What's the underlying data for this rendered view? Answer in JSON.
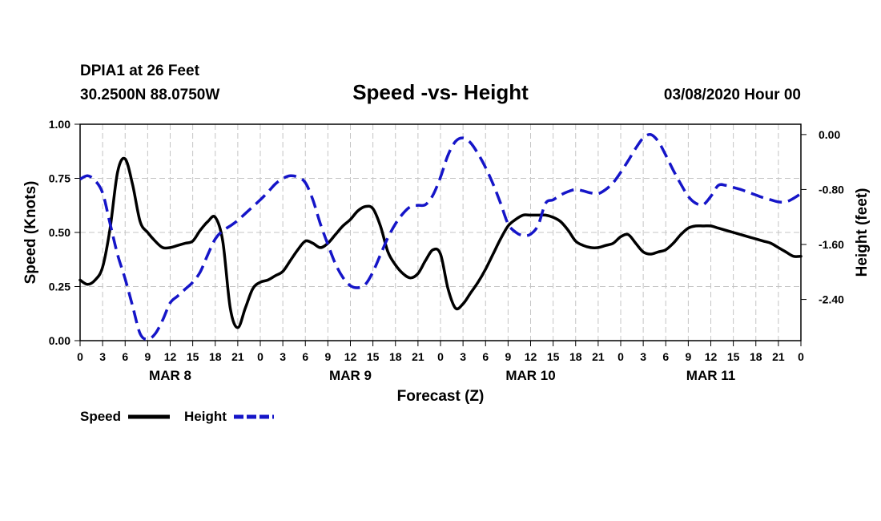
{
  "chart_data": {
    "type": "line",
    "station": "DPIA1 at 26 Feet",
    "coords": "30.2500N 88.0750W",
    "title": "Speed -vs- Height",
    "run": "03/08/2020 Hour 00",
    "xlabel": "Forecast (Z)",
    "ylabel_left": "Speed (Knots)",
    "ylabel_right": "Height (feet)",
    "x_range_hours": [
      0,
      96
    ],
    "y_left_range": [
      0,
      1.0
    ],
    "y_right_range": [
      -3.0,
      0.15
    ],
    "y_left_ticks": [
      "0.00",
      "0.25",
      "0.50",
      "0.75",
      "1.00"
    ],
    "y_left_tick_values": [
      0,
      0.25,
      0.5,
      0.75,
      1.0
    ],
    "y_right_ticks": [
      "0.00",
      "-0.80",
      "-1.60",
      "-2.40"
    ],
    "y_right_tick_values": [
      0,
      -0.8,
      -1.6,
      -2.4
    ],
    "x_tick_labels": [
      "0",
      "3",
      "6",
      "9",
      "12",
      "15",
      "18",
      "21",
      "0",
      "3",
      "6",
      "9",
      "12",
      "15",
      "18",
      "21",
      "0",
      "3",
      "6",
      "9",
      "12",
      "15",
      "18",
      "21",
      "0",
      "3",
      "6",
      "9",
      "12",
      "15",
      "18",
      "21",
      "0"
    ],
    "day_labels": [
      {
        "label": "MAR 8",
        "hour": 12
      },
      {
        "label": "MAR 9",
        "hour": 36
      },
      {
        "label": "MAR 10",
        "hour": 60
      },
      {
        "label": "MAR 11",
        "hour": 84
      }
    ],
    "legend": {
      "speed": "Speed",
      "height": "Height"
    },
    "series": [
      {
        "name": "Speed",
        "color": "#000000",
        "axis": "left",
        "points": [
          [
            0,
            0.28
          ],
          [
            1,
            0.26
          ],
          [
            2,
            0.28
          ],
          [
            3,
            0.34
          ],
          [
            4,
            0.52
          ],
          [
            5,
            0.78
          ],
          [
            6,
            0.84
          ],
          [
            7,
            0.72
          ],
          [
            8,
            0.55
          ],
          [
            9,
            0.5
          ],
          [
            10,
            0.46
          ],
          [
            11,
            0.43
          ],
          [
            12,
            0.43
          ],
          [
            13,
            0.44
          ],
          [
            14,
            0.45
          ],
          [
            15,
            0.46
          ],
          [
            16,
            0.51
          ],
          [
            17,
            0.55
          ],
          [
            18,
            0.57
          ],
          [
            19,
            0.46
          ],
          [
            20,
            0.15
          ],
          [
            21,
            0.06
          ],
          [
            22,
            0.15
          ],
          [
            23,
            0.24
          ],
          [
            24,
            0.27
          ],
          [
            25,
            0.28
          ],
          [
            26,
            0.3
          ],
          [
            27,
            0.32
          ],
          [
            28,
            0.37
          ],
          [
            29,
            0.42
          ],
          [
            30,
            0.46
          ],
          [
            31,
            0.45
          ],
          [
            32,
            0.43
          ],
          [
            33,
            0.45
          ],
          [
            34,
            0.49
          ],
          [
            35,
            0.53
          ],
          [
            36,
            0.56
          ],
          [
            37,
            0.6
          ],
          [
            38,
            0.62
          ],
          [
            39,
            0.61
          ],
          [
            40,
            0.53
          ],
          [
            41,
            0.41
          ],
          [
            42,
            0.35
          ],
          [
            43,
            0.31
          ],
          [
            44,
            0.29
          ],
          [
            45,
            0.31
          ],
          [
            46,
            0.37
          ],
          [
            47,
            0.42
          ],
          [
            48,
            0.4
          ],
          [
            49,
            0.24
          ],
          [
            50,
            0.15
          ],
          [
            51,
            0.17
          ],
          [
            52,
            0.22
          ],
          [
            53,
            0.27
          ],
          [
            54,
            0.33
          ],
          [
            55,
            0.4
          ],
          [
            56,
            0.47
          ],
          [
            57,
            0.53
          ],
          [
            58,
            0.56
          ],
          [
            59,
            0.58
          ],
          [
            60,
            0.58
          ],
          [
            61,
            0.58
          ],
          [
            62,
            0.58
          ],
          [
            63,
            0.57
          ],
          [
            64,
            0.55
          ],
          [
            65,
            0.51
          ],
          [
            66,
            0.46
          ],
          [
            67,
            0.44
          ],
          [
            68,
            0.43
          ],
          [
            69,
            0.43
          ],
          [
            70,
            0.44
          ],
          [
            71,
            0.45
          ],
          [
            72,
            0.48
          ],
          [
            73,
            0.49
          ],
          [
            74,
            0.45
          ],
          [
            75,
            0.41
          ],
          [
            76,
            0.4
          ],
          [
            77,
            0.41
          ],
          [
            78,
            0.42
          ],
          [
            79,
            0.45
          ],
          [
            80,
            0.49
          ],
          [
            81,
            0.52
          ],
          [
            82,
            0.53
          ],
          [
            83,
            0.53
          ],
          [
            84,
            0.53
          ],
          [
            85,
            0.52
          ],
          [
            86,
            0.51
          ],
          [
            87,
            0.5
          ],
          [
            88,
            0.49
          ],
          [
            89,
            0.48
          ],
          [
            90,
            0.47
          ],
          [
            91,
            0.46
          ],
          [
            92,
            0.45
          ],
          [
            93,
            0.43
          ],
          [
            94,
            0.41
          ],
          [
            95,
            0.39
          ],
          [
            96,
            0.39
          ]
        ]
      },
      {
        "name": "Height",
        "color": "#1515c8",
        "axis": "right",
        "points": [
          [
            0,
            -0.65
          ],
          [
            1,
            -0.6
          ],
          [
            2,
            -0.67
          ],
          [
            3,
            -0.85
          ],
          [
            4,
            -1.3
          ],
          [
            5,
            -1.75
          ],
          [
            6,
            -2.1
          ],
          [
            7,
            -2.5
          ],
          [
            8,
            -2.9
          ],
          [
            9,
            -2.98
          ],
          [
            10,
            -2.9
          ],
          [
            11,
            -2.7
          ],
          [
            12,
            -2.45
          ],
          [
            13,
            -2.35
          ],
          [
            14,
            -2.25
          ],
          [
            15,
            -2.15
          ],
          [
            16,
            -2.0
          ],
          [
            17,
            -1.75
          ],
          [
            18,
            -1.52
          ],
          [
            19,
            -1.4
          ],
          [
            20,
            -1.33
          ],
          [
            21,
            -1.25
          ],
          [
            22,
            -1.15
          ],
          [
            23,
            -1.05
          ],
          [
            24,
            -0.95
          ],
          [
            25,
            -0.84
          ],
          [
            26,
            -0.72
          ],
          [
            27,
            -0.64
          ],
          [
            28,
            -0.6
          ],
          [
            29,
            -0.62
          ],
          [
            30,
            -0.7
          ],
          [
            31,
            -0.95
          ],
          [
            32,
            -1.3
          ],
          [
            33,
            -1.6
          ],
          [
            34,
            -1.88
          ],
          [
            35,
            -2.08
          ],
          [
            36,
            -2.2
          ],
          [
            37,
            -2.23
          ],
          [
            38,
            -2.18
          ],
          [
            39,
            -2.0
          ],
          [
            40,
            -1.75
          ],
          [
            41,
            -1.5
          ],
          [
            42,
            -1.3
          ],
          [
            43,
            -1.15
          ],
          [
            44,
            -1.05
          ],
          [
            45,
            -1.03
          ],
          [
            46,
            -1.02
          ],
          [
            47,
            -0.88
          ],
          [
            48,
            -0.62
          ],
          [
            49,
            -0.3
          ],
          [
            50,
            -0.1
          ],
          [
            51,
            -0.05
          ],
          [
            52,
            -0.12
          ],
          [
            53,
            -0.28
          ],
          [
            54,
            -0.48
          ],
          [
            55,
            -0.72
          ],
          [
            56,
            -1.0
          ],
          [
            57,
            -1.3
          ],
          [
            58,
            -1.42
          ],
          [
            59,
            -1.47
          ],
          [
            60,
            -1.45
          ],
          [
            61,
            -1.32
          ],
          [
            62,
            -1.0
          ],
          [
            63,
            -0.95
          ],
          [
            64,
            -0.88
          ],
          [
            65,
            -0.83
          ],
          [
            66,
            -0.8
          ],
          [
            67,
            -0.82
          ],
          [
            68,
            -0.85
          ],
          [
            69,
            -0.86
          ],
          [
            70,
            -0.8
          ],
          [
            71,
            -0.7
          ],
          [
            72,
            -0.55
          ],
          [
            73,
            -0.38
          ],
          [
            74,
            -0.2
          ],
          [
            75,
            -0.05
          ],
          [
            76,
            0.0
          ],
          [
            77,
            -0.1
          ],
          [
            78,
            -0.3
          ],
          [
            79,
            -0.52
          ],
          [
            80,
            -0.72
          ],
          [
            81,
            -0.9
          ],
          [
            82,
            -1.0
          ],
          [
            83,
            -1.02
          ],
          [
            84,
            -0.9
          ],
          [
            85,
            -0.74
          ],
          [
            86,
            -0.74
          ],
          [
            87,
            -0.77
          ],
          [
            88,
            -0.8
          ],
          [
            89,
            -0.84
          ],
          [
            90,
            -0.88
          ],
          [
            91,
            -0.92
          ],
          [
            92,
            -0.95
          ],
          [
            93,
            -0.98
          ],
          [
            94,
            -0.98
          ],
          [
            95,
            -0.93
          ],
          [
            96,
            -0.86
          ]
        ]
      }
    ]
  }
}
